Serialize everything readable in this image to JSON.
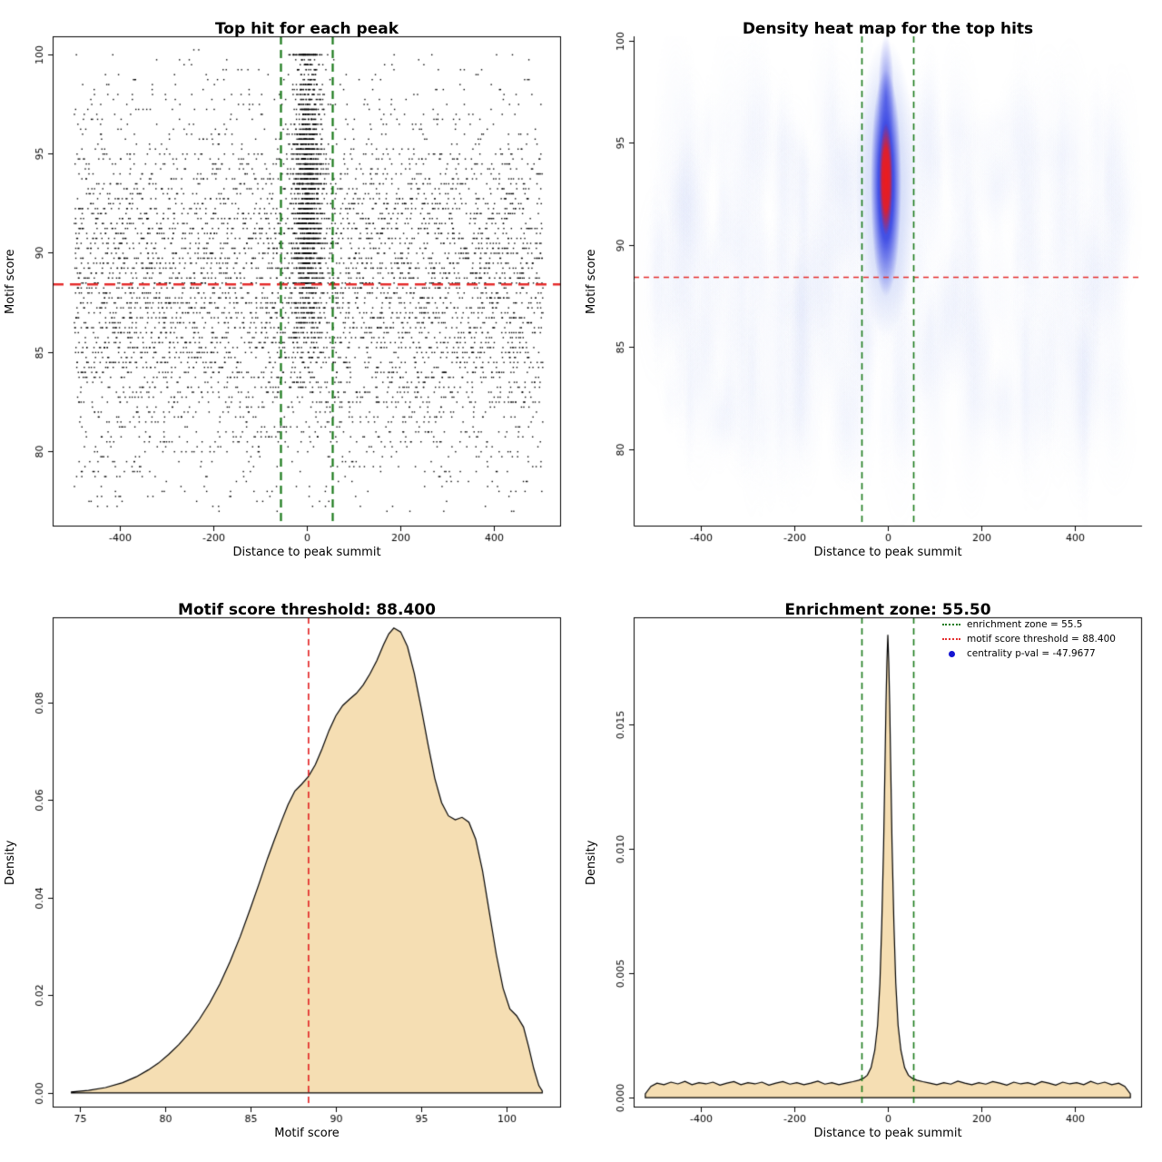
{
  "page": {
    "background": "#ffffff"
  },
  "values": {
    "motif_score_threshold": 88.4,
    "enrichment_zone_halfwidth": 55.5,
    "centrality_p_val": -47.9677
  },
  "chart_data": [
    {
      "type": "scatter",
      "title": "Top hit for each peak",
      "xlabel": "Distance to peak summit",
      "ylabel": "Motif score",
      "xlim": [
        -545,
        545
      ],
      "ylim": [
        76.2,
        100.9
      ],
      "xticks": [
        -400,
        -200,
        0,
        200,
        400
      ],
      "xtick_labels": [
        "-400",
        "-200",
        "0",
        "200",
        "400"
      ],
      "yticks": [
        80,
        85,
        90,
        95,
        100
      ],
      "ytick_labels": [
        "80",
        "85",
        "90",
        "95",
        "100"
      ],
      "box": "full",
      "seed": 1337,
      "n_background": 5200,
      "bg_mean": 88.2,
      "bg_sd": 4.7,
      "n_central": 1750,
      "cl_mean": 93.2,
      "cl_sd": 4.0,
      "cl_sd_x": 15,
      "point_color": "#000000",
      "threshold_y": 88.4,
      "threshold_color": "#e42b2b",
      "zone_halfwidth": 55.5,
      "zone_color": "#1b7a1b"
    },
    {
      "type": "heatmap",
      "title": "Density heat map for the top hits",
      "xlabel": "Distance to peak summit",
      "ylabel": "Motif score",
      "xlim": [
        -545,
        545
      ],
      "ylim": [
        76.2,
        100.2
      ],
      "xticks": [
        -400,
        -200,
        0,
        200,
        400
      ],
      "xtick_labels": [
        "-400",
        "-200",
        "0",
        "200",
        "400"
      ],
      "yticks": [
        80,
        85,
        90,
        95,
        100
      ],
      "ytick_labels": [
        "80",
        "85",
        "90",
        "95",
        "100"
      ],
      "box": "axes",
      "seed": 77,
      "n_streaks": 330,
      "blob_x": -4,
      "low_color": "#b6c4f4",
      "mid_color": "#2230e0",
      "high_color": "#ee1c1c",
      "threshold_y": 88.4,
      "threshold_color": "#e42b2b",
      "zone_halfwidth": 55.5,
      "zone_color": "#1b7a1b"
    },
    {
      "type": "area",
      "title": "Motif score threshold: 88.400",
      "xlabel": "Motif score",
      "ylabel": "Density",
      "xlim": [
        73.4,
        103.2
      ],
      "ylim": [
        -0.003,
        0.0975
      ],
      "xticks": [
        75,
        80,
        85,
        90,
        95,
        100
      ],
      "xtick_labels": [
        "75",
        "80",
        "85",
        "90",
        "95",
        "100"
      ],
      "yticks": [
        0,
        0.02,
        0.04,
        0.06,
        0.08
      ],
      "ytick_labels": [
        "0.00",
        "0.02",
        "0.04",
        "0.06",
        "0.08"
      ],
      "box": "full",
      "fill": "#f5deb3",
      "threshold_x": 88.4,
      "threshold_color": "#e42b2b",
      "x": [
        74.5,
        75.5,
        76.5,
        77.5,
        78.3,
        79.0,
        79.6,
        80.2,
        80.8,
        81.4,
        82.0,
        82.6,
        83.2,
        83.8,
        84.4,
        85.0,
        85.5,
        86.0,
        86.4,
        86.8,
        87.2,
        87.6,
        88.0,
        88.4,
        88.8,
        89.2,
        89.6,
        90.0,
        90.4,
        90.8,
        91.2,
        91.6,
        92.0,
        92.4,
        92.8,
        93.1,
        93.4,
        93.8,
        94.2,
        94.6,
        95.0,
        95.4,
        95.8,
        96.2,
        96.6,
        97.0,
        97.4,
        97.8,
        98.2,
        98.6,
        99.0,
        99.4,
        99.8,
        100.2,
        100.6,
        101.0,
        101.3,
        101.6,
        101.9,
        102.1
      ],
      "y": [
        0.0002,
        0.0005,
        0.0011,
        0.0021,
        0.0033,
        0.0047,
        0.0061,
        0.0079,
        0.0099,
        0.0123,
        0.0151,
        0.0184,
        0.0223,
        0.0269,
        0.0321,
        0.0379,
        0.0429,
        0.0481,
        0.0519,
        0.0556,
        0.0591,
        0.0619,
        0.0633,
        0.0649,
        0.0673,
        0.0706,
        0.0743,
        0.0773,
        0.0794,
        0.0807,
        0.0819,
        0.0836,
        0.0859,
        0.0886,
        0.0919,
        0.0941,
        0.0953,
        0.0945,
        0.0915,
        0.086,
        0.079,
        0.0715,
        0.0645,
        0.0595,
        0.0568,
        0.056,
        0.0565,
        0.0555,
        0.052,
        0.0455,
        0.037,
        0.0285,
        0.0215,
        0.0172,
        0.0158,
        0.0135,
        0.0095,
        0.005,
        0.0015,
        0.0004
      ]
    },
    {
      "type": "area",
      "title": "Enrichment zone: 55.50",
      "xlabel": "Distance to peak summit",
      "ylabel": "Density",
      "xlim": [
        -545,
        545
      ],
      "ylim": [
        -0.0004,
        0.0193
      ],
      "xticks": [
        -400,
        -200,
        0,
        200,
        400
      ],
      "xtick_labels": [
        "-400",
        "-200",
        "0",
        "200",
        "400"
      ],
      "yticks": [
        0,
        0.005,
        0.01,
        0.015
      ],
      "ytick_labels": [
        "0.000",
        "0.005",
        "0.010",
        "0.015"
      ],
      "box": "full",
      "fill": "#f5deb3",
      "zone_halfwidth": 55.5,
      "zone_color": "#1b7a1b",
      "legend": [
        {
          "label": "enrichment zone = 55.5",
          "swatch": "green-dotted-line",
          "color": "#1b7a1b"
        },
        {
          "label": "motif score threshold = 88.400",
          "swatch": "red-dotted-line",
          "color": "#e42b2b"
        },
        {
          "label": "centrality p-val = -47.9677",
          "swatch": "blue-dot",
          "color": "#1414d2"
        }
      ],
      "x": [
        -520,
        -508,
        -495,
        -480,
        -465,
        -450,
        -435,
        -420,
        -405,
        -390,
        -375,
        -360,
        -345,
        -330,
        -315,
        -300,
        -285,
        -270,
        -255,
        -240,
        -225,
        -210,
        -195,
        -180,
        -165,
        -150,
        -135,
        -120,
        -105,
        -90,
        -75,
        -62,
        -52,
        -44,
        -36,
        -28,
        -22,
        -17,
        -13,
        -9,
        -6,
        -4,
        -2,
        0,
        2,
        4,
        6,
        9,
        13,
        17,
        22,
        28,
        36,
        44,
        52,
        62,
        75,
        90,
        105,
        120,
        135,
        150,
        165,
        180,
        195,
        210,
        225,
        240,
        255,
        270,
        285,
        300,
        315,
        330,
        345,
        360,
        375,
        390,
        405,
        420,
        435,
        450,
        465,
        480,
        495,
        508,
        520
      ],
      "y": [
        0.00015,
        0.00045,
        0.00058,
        0.00052,
        0.00062,
        0.00055,
        0.00065,
        0.00052,
        0.0006,
        0.00055,
        0.00062,
        0.0005,
        0.00058,
        0.00064,
        0.00052,
        0.0006,
        0.00055,
        0.00062,
        0.0005,
        0.00058,
        0.00064,
        0.00054,
        0.0006,
        0.00052,
        0.00058,
        0.00066,
        0.00054,
        0.0006,
        0.00052,
        0.00058,
        0.00064,
        0.0007,
        0.00078,
        0.0009,
        0.0012,
        0.0019,
        0.0029,
        0.0046,
        0.007,
        0.0102,
        0.0135,
        0.0158,
        0.0175,
        0.0186,
        0.0175,
        0.0158,
        0.0135,
        0.0102,
        0.007,
        0.0046,
        0.0029,
        0.0019,
        0.0012,
        0.0009,
        0.00078,
        0.0007,
        0.00064,
        0.00058,
        0.00052,
        0.0006,
        0.00054,
        0.00066,
        0.00058,
        0.00052,
        0.0006,
        0.00054,
        0.00064,
        0.00058,
        0.0005,
        0.00062,
        0.00055,
        0.0006,
        0.00052,
        0.00064,
        0.00058,
        0.0005,
        0.00062,
        0.00055,
        0.0006,
        0.00052,
        0.00065,
        0.00055,
        0.00062,
        0.00052,
        0.00058,
        0.00045,
        0.00015
      ]
    }
  ]
}
